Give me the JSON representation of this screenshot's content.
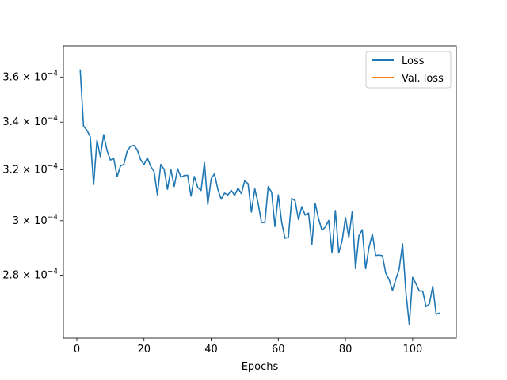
{
  "chart_data": {
    "type": "line",
    "title": "",
    "xlabel": "Epochs",
    "ylabel": "",
    "y_scale": "log",
    "xlim": [
      -4,
      113
    ],
    "ylim": [
      0.0002585,
      0.0003745
    ],
    "x_ticks": [
      {
        "value": 0,
        "label": "0"
      },
      {
        "value": 20,
        "label": "20"
      },
      {
        "value": 40,
        "label": "40"
      },
      {
        "value": 60,
        "label": "60"
      },
      {
        "value": 80,
        "label": "80"
      },
      {
        "value": 100,
        "label": "100"
      }
    ],
    "y_ticks": [
      {
        "value": 0.00028,
        "mantissa": "2.8",
        "base": "10",
        "exponent": "−4"
      },
      {
        "value": 0.0003,
        "mantissa": "3",
        "base": "10",
        "exponent": "−4"
      },
      {
        "value": 0.00032,
        "mantissa": "3.2",
        "base": "10",
        "exponent": "−4"
      },
      {
        "value": 0.00034,
        "mantissa": "3.4",
        "base": "10",
        "exponent": "−4"
      },
      {
        "value": 0.00036,
        "mantissa": "3.6",
        "base": "10",
        "exponent": "−4"
      }
    ],
    "grid": false,
    "legend_position": "top-right",
    "series": [
      {
        "name": "Loss",
        "color": "#1f77b4",
        "x": [
          1,
          2,
          3,
          4,
          5,
          6,
          7,
          8,
          9,
          10,
          11,
          12,
          13,
          14,
          15,
          16,
          17,
          18,
          19,
          20,
          21,
          22,
          23,
          24,
          25,
          26,
          27,
          28,
          29,
          30,
          31,
          32,
          33,
          34,
          35,
          36,
          37,
          38,
          39,
          40,
          41,
          42,
          43,
          44,
          45,
          46,
          47,
          48,
          49,
          50,
          51,
          52,
          53,
          54,
          55,
          56,
          57,
          58,
          59,
          60,
          61,
          62,
          63,
          64,
          65,
          66,
          67,
          68,
          69,
          70,
          71,
          72,
          73,
          74,
          75,
          76,
          77,
          78,
          79,
          80,
          81,
          82,
          83,
          84,
          85,
          86,
          87,
          88,
          89,
          90,
          91,
          92,
          93,
          94,
          95,
          96,
          97,
          98,
          99,
          100,
          101,
          102,
          103,
          104,
          105,
          106,
          107,
          108
        ],
        "values": [
          0.0003635,
          0.0003383,
          0.0003365,
          0.0003337,
          0.0003141,
          0.0003323,
          0.0003254,
          0.0003346,
          0.0003279,
          0.000324,
          0.0003246,
          0.0003172,
          0.0003216,
          0.0003222,
          0.0003277,
          0.0003297,
          0.0003301,
          0.0003282,
          0.0003242,
          0.0003221,
          0.0003249,
          0.0003214,
          0.0003194,
          0.00031,
          0.0003222,
          0.0003202,
          0.0003122,
          0.0003202,
          0.0003133,
          0.0003205,
          0.000317,
          0.0003177,
          0.0003178,
          0.0003095,
          0.0003173,
          0.000313,
          0.0003117,
          0.000323,
          0.0003062,
          0.0003164,
          0.0003184,
          0.0003122,
          0.0003083,
          0.0003107,
          0.00031,
          0.0003118,
          0.0003098,
          0.0003127,
          0.0003105,
          0.0003156,
          0.0003144,
          0.0003033,
          0.0003124,
          0.0003066,
          0.0002993,
          0.0002993,
          0.0003133,
          0.0003111,
          0.0002978,
          0.00031,
          0.0002994,
          0.0002934,
          0.0002938,
          0.0003086,
          0.0003077,
          0.0003004,
          0.0003054,
          0.0003021,
          0.0003029,
          0.0002911,
          0.0003066,
          0.0003007,
          0.0002964,
          0.0002976,
          0.0003001,
          0.000288,
          0.0003039,
          0.000288,
          0.0002924,
          0.0003012,
          0.0002937,
          0.0003035,
          0.0002823,
          0.0002943,
          0.0002966,
          0.0002823,
          0.00029,
          0.000295,
          0.0002871,
          0.0002872,
          0.000287,
          0.0002807,
          0.0002784,
          0.0002746,
          0.0002785,
          0.0002822,
          0.0002913,
          0.000274,
          0.000263,
          0.0002792,
          0.0002769,
          0.0002744,
          0.0002744,
          0.000269,
          0.00027,
          0.0002761,
          0.0002664,
          0.0002669
        ]
      },
      {
        "name": "Val. loss",
        "color": "#ff7f0e",
        "x": [],
        "values": []
      }
    ]
  }
}
